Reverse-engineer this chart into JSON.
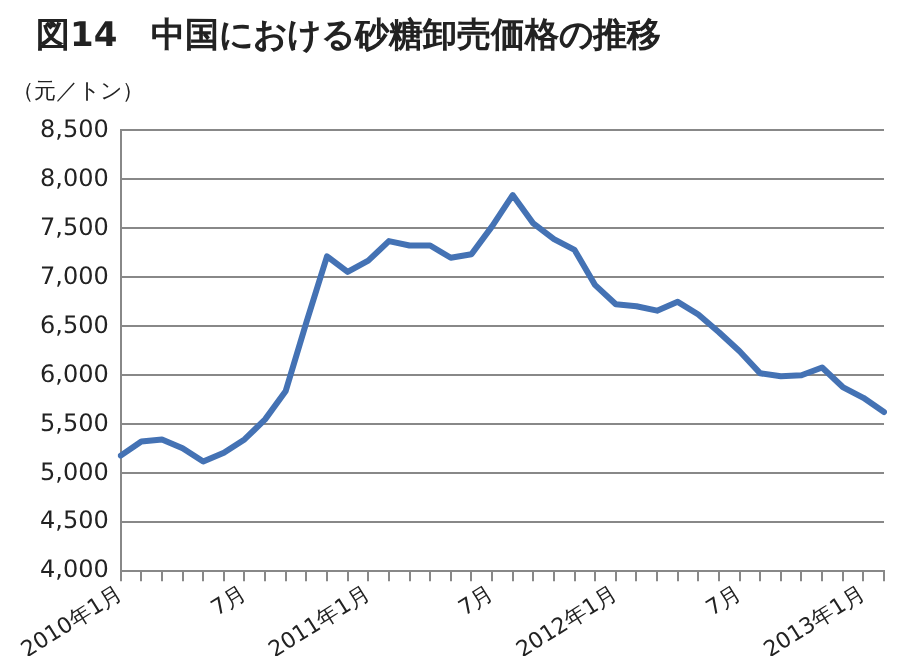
{
  "chart_data": {
    "type": "line",
    "title": "図14　中国における砂糖卸売価格の推移",
    "ylabel": "（元／トン）",
    "categories": [
      "2010年1月",
      null,
      null,
      null,
      null,
      null,
      "7月",
      null,
      null,
      null,
      null,
      null,
      "2011年1月",
      null,
      null,
      null,
      null,
      null,
      "7月",
      null,
      null,
      null,
      null,
      null,
      "2012年1月",
      null,
      null,
      null,
      null,
      null,
      "7月",
      null,
      null,
      null,
      null,
      null,
      "2013年1月",
      null
    ],
    "series": [
      {
        "color": "#4472b4",
        "values": [
          5180,
          5325,
          5345,
          5255,
          5120,
          5210,
          5345,
          5550,
          5840,
          6540,
          7215,
          7055,
          7170,
          7370,
          7325,
          7325,
          7200,
          7235,
          7520,
          7840,
          7550,
          7390,
          7280,
          6920,
          6725,
          6705,
          6660,
          6750,
          6620,
          6440,
          6245,
          6020,
          5990,
          6000,
          6080,
          5880,
          5770,
          5625
        ]
      }
    ],
    "ylim": [
      4000,
      8500
    ],
    "yticks": [
      {
        "value": 4000,
        "label": "4,000"
      },
      {
        "value": 4500,
        "label": "4,500"
      },
      {
        "value": 5000,
        "label": "5,000"
      },
      {
        "value": 5500,
        "label": "5,500"
      },
      {
        "value": 6000,
        "label": "6,000"
      },
      {
        "value": 6500,
        "label": "6,500"
      },
      {
        "value": 7000,
        "label": "7,000"
      },
      {
        "value": 7500,
        "label": "7,500"
      },
      {
        "value": 8000,
        "label": "8,000"
      },
      {
        "value": 8500,
        "label": "8,500"
      }
    ],
    "grid": "y",
    "legend": false,
    "marker": "none",
    "line_style": "solid"
  }
}
